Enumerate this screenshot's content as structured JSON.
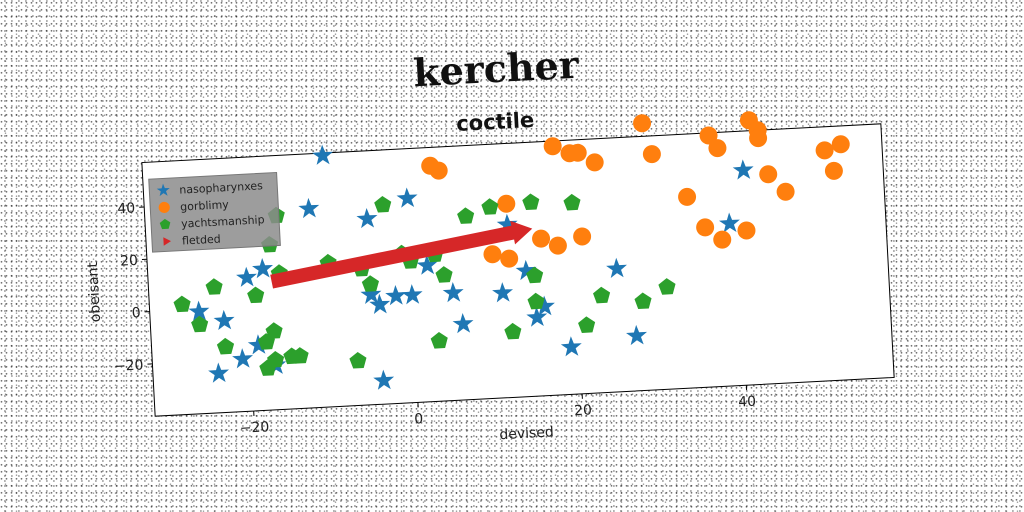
{
  "chart_data": {
    "type": "scatter",
    "title": "kercher",
    "subtitle": "coctile",
    "xlabel": "devised",
    "ylabel": "obeisant",
    "xlim": [
      -32,
      58
    ],
    "ylim": [
      -40,
      57
    ],
    "x_ticks": [
      -20,
      0,
      20,
      40
    ],
    "y_ticks": [
      -20,
      0,
      20,
      40
    ],
    "grid": false,
    "legend_position": "top-left",
    "series": [
      {
        "name": "nasopharynxes",
        "marker": "star",
        "color": "#1f77b4",
        "points": [
          [
            -10,
            56
          ],
          [
            -12,
            36
          ],
          [
            -5,
            31
          ],
          [
            0,
            38
          ],
          [
            -18,
            14
          ],
          [
            -20,
            11
          ],
          [
            -17,
            -23
          ],
          [
            -23,
            -5
          ],
          [
            -26,
            -1
          ],
          [
            -24,
            -25
          ],
          [
            -21,
            -20
          ],
          [
            -19,
            -15
          ],
          [
            -4,
            -2
          ],
          [
            -5,
            2
          ],
          [
            -2,
            1
          ],
          [
            0,
            1
          ],
          [
            2,
            12
          ],
          [
            5,
            1
          ],
          [
            6,
            -11
          ],
          [
            -4,
            -31
          ],
          [
            12,
            26
          ],
          [
            14,
            8
          ],
          [
            15,
            -10
          ],
          [
            16,
            -6
          ],
          [
            11,
            0
          ],
          [
            19,
            -22
          ],
          [
            25,
            7
          ],
          [
            27,
            -19
          ],
          [
            39,
            22
          ],
          [
            41,
            42
          ]
        ]
      },
      {
        "name": "gorblimy",
        "marker": "circle",
        "color": "#ff7f0e",
        "points": [
          [
            3,
            50
          ],
          [
            4,
            48
          ],
          [
            12,
            34
          ],
          [
            18,
            55
          ],
          [
            20,
            52
          ],
          [
            21,
            52
          ],
          [
            23,
            48
          ],
          [
            29,
            62
          ],
          [
            30,
            50
          ],
          [
            34,
            33
          ],
          [
            36,
            21
          ],
          [
            37,
            56
          ],
          [
            38,
            51
          ],
          [
            38,
            16
          ],
          [
            41,
            19
          ],
          [
            42,
            61
          ],
          [
            43,
            57
          ],
          [
            43,
            54
          ],
          [
            44,
            40
          ],
          [
            46,
            33
          ],
          [
            51,
            48
          ],
          [
            52,
            40
          ],
          [
            53,
            50
          ],
          [
            16,
            20
          ],
          [
            18,
            17
          ],
          [
            21,
            20
          ],
          [
            10,
            15
          ],
          [
            12,
            13
          ]
        ]
      },
      {
        "name": "yachtsmanship",
        "marker": "pentagon",
        "color": "#2ca02c",
        "points": [
          [
            -16,
            34
          ],
          [
            -17,
            23
          ],
          [
            -16,
            12
          ],
          [
            -19,
            4
          ],
          [
            -24,
            8
          ],
          [
            -28,
            2
          ],
          [
            -26,
            -6
          ],
          [
            -23,
            -15
          ],
          [
            -18,
            -14
          ],
          [
            -17,
            -10
          ],
          [
            -17,
            -21
          ],
          [
            -15,
            -20
          ],
          [
            -14,
            -20
          ],
          [
            -18,
            -24
          ],
          [
            -10,
            15
          ],
          [
            -6,
            12
          ],
          [
            -5,
            6
          ],
          [
            -3,
            36
          ],
          [
            -1,
            17
          ],
          [
            0,
            14
          ],
          [
            3,
            16
          ],
          [
            4,
            8
          ],
          [
            7,
            30
          ],
          [
            10,
            33
          ],
          [
            15,
            34
          ],
          [
            20,
            33
          ],
          [
            15,
            6
          ],
          [
            15,
            -4
          ],
          [
            12,
            -15
          ],
          [
            3,
            -17
          ],
          [
            -7,
            -23
          ],
          [
            21,
            -14
          ],
          [
            23,
            -3
          ],
          [
            28,
            -6
          ],
          [
            31,
            -1
          ]
        ]
      },
      {
        "name": "fletded",
        "marker": "triangle",
        "color": "#d62728",
        "points": []
      }
    ],
    "annotations": [
      {
        "type": "arrow",
        "from": [
          -17,
          9
        ],
        "to": [
          15,
          24
        ],
        "color": "#d62728"
      }
    ]
  }
}
